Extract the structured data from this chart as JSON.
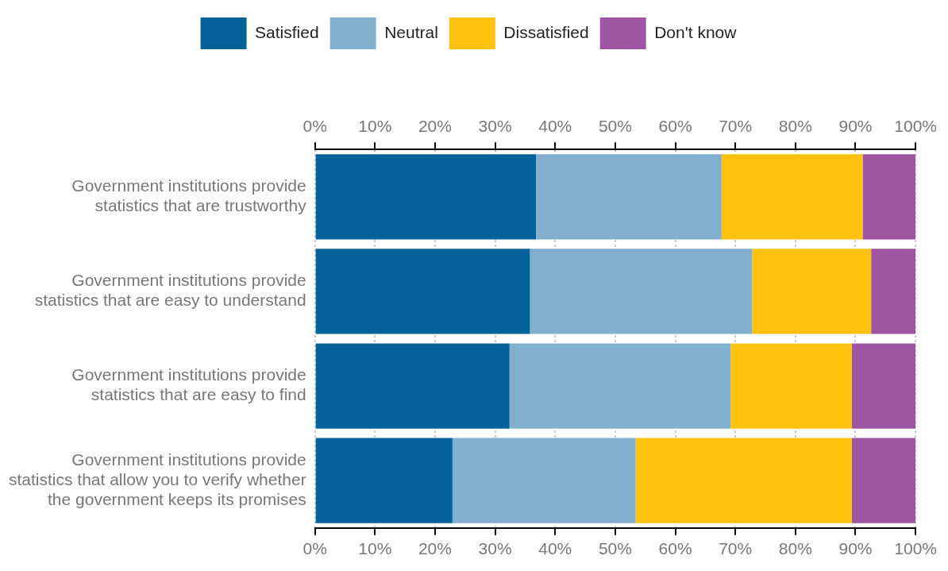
{
  "chart_data": {
    "type": "bar",
    "orientation": "horizontal",
    "stacked": true,
    "categories": [
      "Government institutions provide\nstatistics that are trustworthy",
      "Government institutions provide\nstatistics that are easy to understand",
      "Government institutions provide\nstatistics that are easy to find",
      "Government institutions provide\nstatistics that allow you to verify whether\nthe government keeps its promises"
    ],
    "series": [
      {
        "name": "Satisfied",
        "color": "#04629a",
        "values": [
          36.8,
          35.8,
          32.4,
          22.9
        ]
      },
      {
        "name": "Neutral",
        "color": "#81b0cf",
        "values": [
          30.9,
          37.0,
          36.8,
          30.5
        ]
      },
      {
        "name": "Dissatisfied",
        "color": "#ffc20e",
        "values": [
          23.5,
          19.8,
          20.2,
          36.0
        ]
      },
      {
        "name": "Don't know",
        "color": "#9e56a3",
        "values": [
          8.8,
          7.4,
          10.6,
          10.6
        ]
      }
    ],
    "xlim": [
      0,
      100
    ],
    "xticks": [
      {
        "value": 0,
        "label": "0%"
      },
      {
        "value": 10,
        "label": "10%"
      },
      {
        "value": 20,
        "label": "20%"
      },
      {
        "value": 30,
        "label": "30%"
      },
      {
        "value": 40,
        "label": "40%"
      },
      {
        "value": 50,
        "label": "50%"
      },
      {
        "value": 60,
        "label": "60%"
      },
      {
        "value": 70,
        "label": "70%"
      },
      {
        "value": 80,
        "label": "80%"
      },
      {
        "value": 90,
        "label": "90%"
      },
      {
        "value": 100,
        "label": "100%"
      }
    ],
    "x2lim": [
      0,
      100
    ],
    "x2ticks": [
      {
        "value": 0,
        "label": "0%"
      },
      {
        "value": 10,
        "label": "10%"
      },
      {
        "value": 20,
        "label": "20%"
      },
      {
        "value": 30,
        "label": "30%"
      },
      {
        "value": 40,
        "label": "40%"
      },
      {
        "value": 50,
        "label": "50%"
      },
      {
        "value": 60,
        "label": "60%"
      },
      {
        "value": 70,
        "label": "70%"
      },
      {
        "value": 80,
        "label": "80%"
      },
      {
        "value": 90,
        "label": "90%"
      },
      {
        "value": 100,
        "label": "100%"
      }
    ],
    "grid": "x",
    "legend": "top"
  }
}
